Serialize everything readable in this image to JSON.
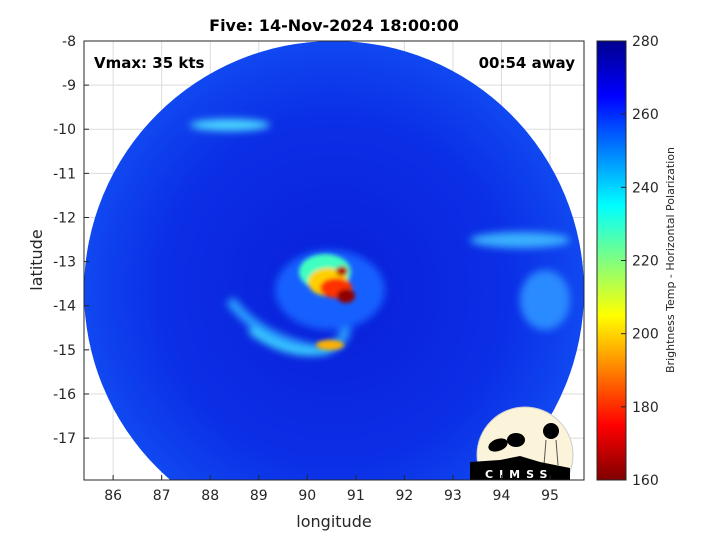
{
  "chart_data": {
    "type": "heatmap",
    "title": "Five: 14-Nov-2024 18:00:00",
    "xlabel": "longitude",
    "ylabel": "latitude",
    "xlim": [
      85.4,
      95.7
    ],
    "ylim": [
      -17.95,
      -8
    ],
    "x_ticks": [
      "86",
      "87",
      "88",
      "89",
      "90",
      "91",
      "92",
      "93",
      "94",
      "95"
    ],
    "y_ticks": [
      "-8",
      "-9",
      "-10",
      "-11",
      "-12",
      "-13",
      "-14",
      "-15",
      "-16",
      "-17"
    ],
    "grid": true,
    "annotations": {
      "vmax": "Vmax: 35 kts",
      "time_offset": "00:54 away"
    },
    "colorbar": {
      "label": "Brightness Temp - Horizontal Polarization",
      "range": [
        160,
        280
      ],
      "ticks": [
        "160",
        "180",
        "200",
        "220",
        "240",
        "260",
        "280"
      ],
      "colormap": [
        "#800000",
        "#ff0000",
        "#ff8000",
        "#ffff00",
        "#80ff80",
        "#00ffff",
        "#0080ff",
        "#0000ff",
        "#00008f"
      ]
    },
    "features": {
      "background_value": 260,
      "cold_core_center": [
        90.7,
        -13.6
      ],
      "cold_core_min": 165
    }
  },
  "logo": {
    "text": "CIMSS"
  }
}
